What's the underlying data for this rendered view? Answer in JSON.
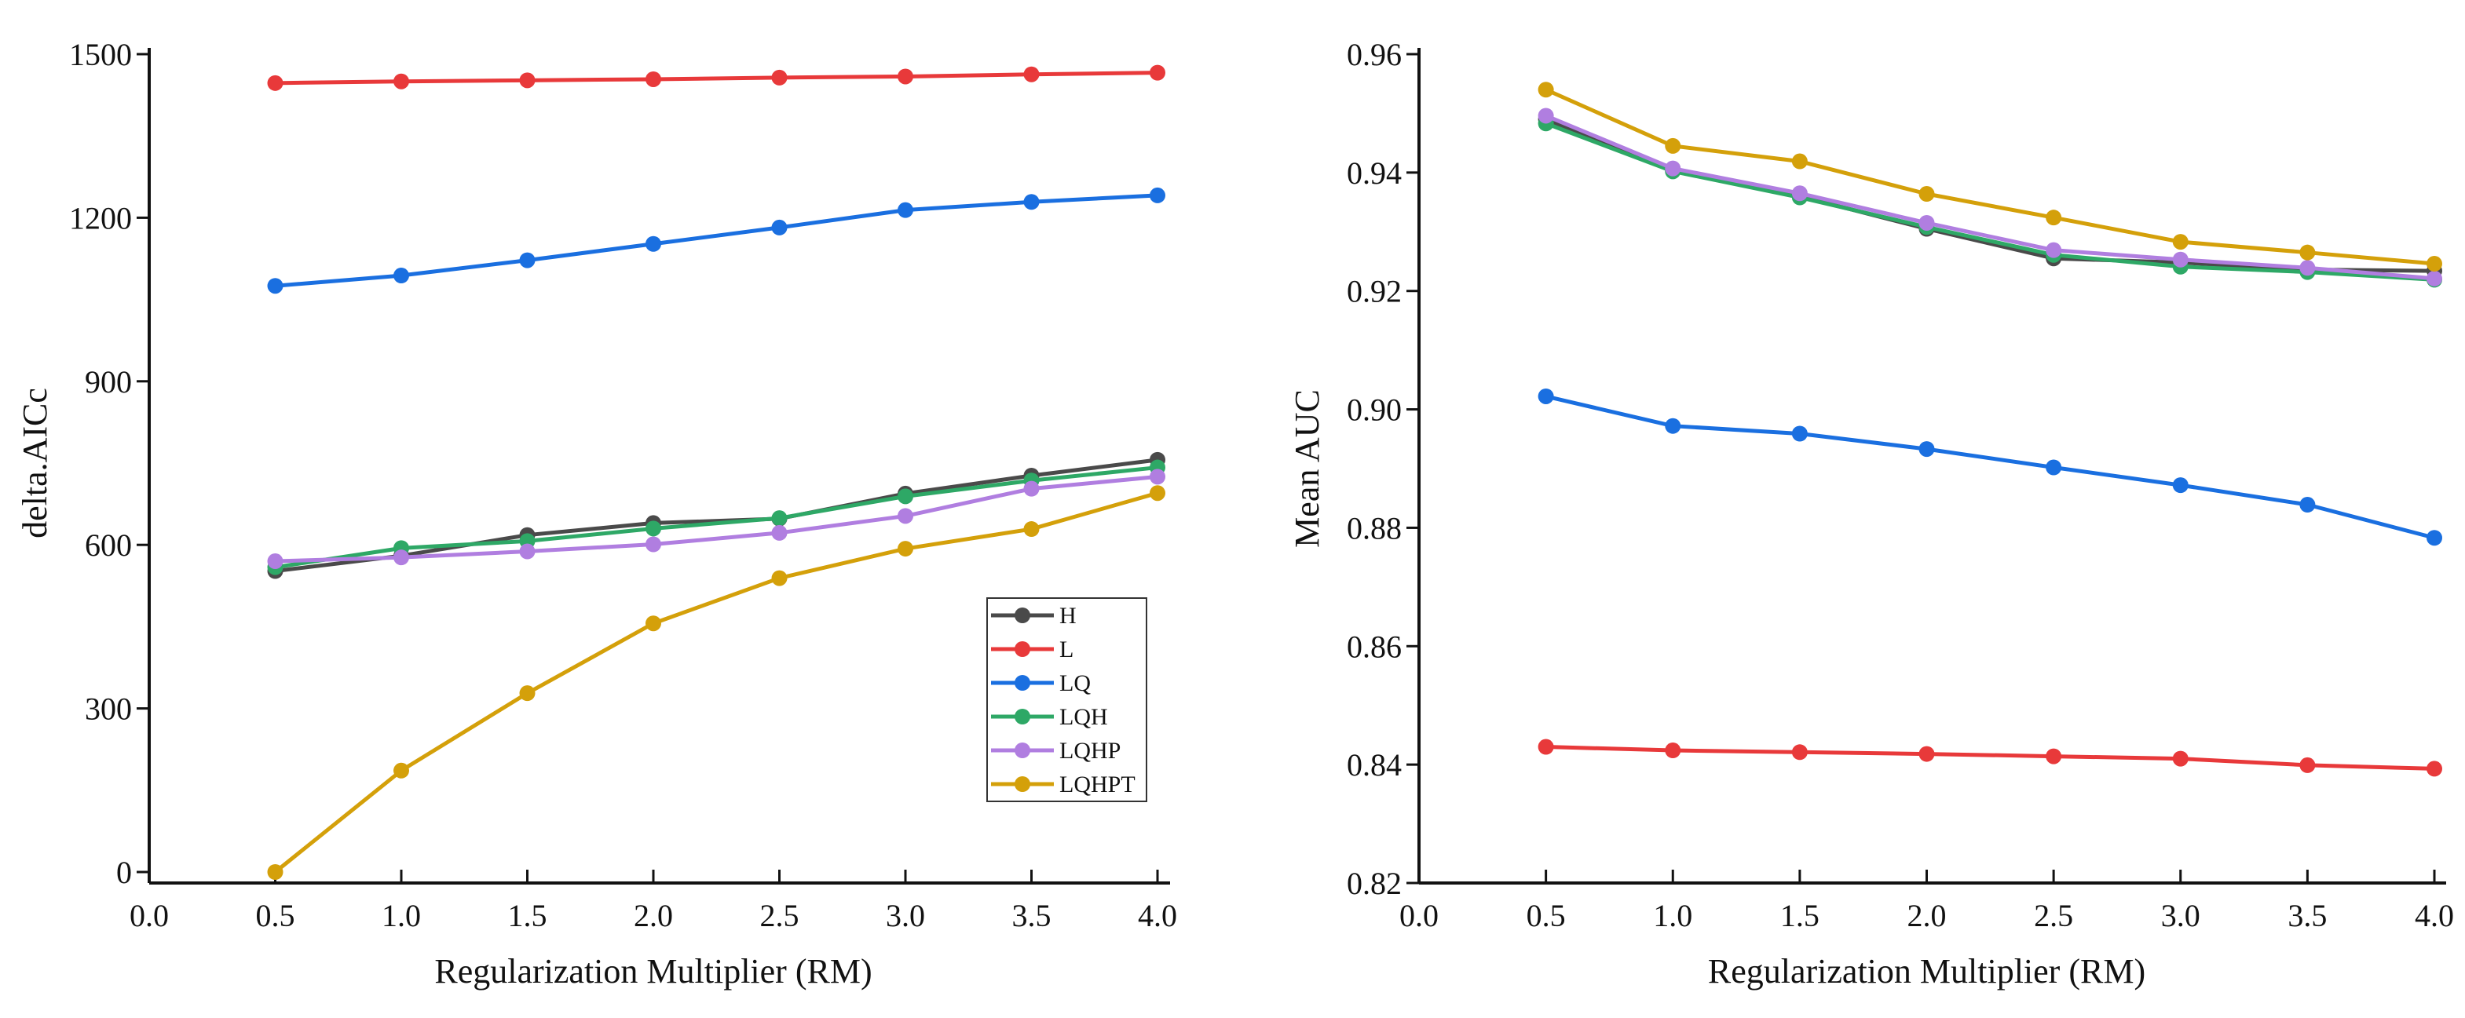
{
  "series_meta": [
    {
      "name": "H",
      "color": "#4a4a4a"
    },
    {
      "name": "L",
      "color": "#e8393a"
    },
    {
      "name": "LQ",
      "color": "#1a6fe0"
    },
    {
      "name": "LQH",
      "color": "#2ea866"
    },
    {
      "name": "LQHP",
      "color": "#b07ee0"
    },
    {
      "name": "LQHPT",
      "color": "#d4a00a"
    }
  ],
  "chart_data": [
    {
      "type": "line",
      "title": "",
      "xlabel": "Regularization Multiplier (RM)",
      "ylabel": "delta.AICc",
      "xlim": [
        0,
        4
      ],
      "ylim": [
        0,
        1500
      ],
      "xticks": [
        "0.0",
        "0.5",
        "1.0",
        "1.5",
        "2.0",
        "2.5",
        "3.0",
        "3.5",
        "4.0"
      ],
      "yticks": [
        "0",
        "300",
        "600",
        "900",
        "1200",
        "1500"
      ],
      "grid": false,
      "legend": "bottom-right",
      "x": [
        0.5,
        1.0,
        1.5,
        2.0,
        2.5,
        3.0,
        3.5,
        4.0
      ],
      "series": [
        {
          "name": "H",
          "values": [
            552,
            580,
            618,
            640,
            648,
            694,
            727,
            756
          ]
        },
        {
          "name": "L",
          "values": [
            1447,
            1450,
            1452,
            1454,
            1457,
            1459,
            1463,
            1466
          ]
        },
        {
          "name": "LQ",
          "values": [
            1075,
            1094,
            1122,
            1152,
            1182,
            1214,
            1229,
            1241
          ]
        },
        {
          "name": "LQH",
          "values": [
            559,
            594,
            607,
            630,
            649,
            689,
            718,
            742
          ]
        },
        {
          "name": "LQHP",
          "values": [
            570,
            577,
            588,
            601,
            622,
            653,
            703,
            725
          ]
        },
        {
          "name": "LQHPT",
          "values": [
            0,
            186,
            328,
            456,
            539,
            593,
            629,
            695
          ]
        }
      ]
    },
    {
      "type": "line",
      "title": "",
      "xlabel": "Regularization Multiplier (RM)",
      "ylabel": "Mean AUC",
      "xlim": [
        0,
        4
      ],
      "ylim": [
        0.82,
        0.96
      ],
      "xticks": [
        "0.0",
        "0.5",
        "1.0",
        "1.5",
        "2.0",
        "2.5",
        "3.0",
        "3.5",
        "4.0"
      ],
      "yticks": [
        "0.82",
        "0.84",
        "0.86",
        "0.88",
        "0.90",
        "0.92",
        "0.94",
        "0.96"
      ],
      "grid": false,
      "legend": "none",
      "x": [
        0.5,
        1.0,
        1.5,
        2.0,
        2.5,
        3.0,
        3.5,
        4.0
      ],
      "series": [
        {
          "name": "H",
          "values": [
            0.949,
            0.9404,
            0.936,
            0.9305,
            0.9255,
            0.9248,
            0.9236,
            0.9234
          ]
        },
        {
          "name": "L",
          "values": [
            0.843,
            0.8424,
            0.8421,
            0.8418,
            0.8414,
            0.841,
            0.8399,
            0.8393
          ]
        },
        {
          "name": "LQ",
          "values": [
            0.9022,
            0.8972,
            0.8959,
            0.8933,
            0.8902,
            0.8872,
            0.8839,
            0.8783
          ]
        },
        {
          "name": "LQH",
          "values": [
            0.9483,
            0.9402,
            0.9358,
            0.9308,
            0.9261,
            0.9241,
            0.9232,
            0.9219
          ]
        },
        {
          "name": "LQHP",
          "values": [
            0.9496,
            0.9407,
            0.9365,
            0.9315,
            0.9269,
            0.9253,
            0.9239,
            0.9221
          ]
        },
        {
          "name": "LQHPT",
          "values": [
            0.954,
            0.9445,
            0.9419,
            0.9364,
            0.9324,
            0.9283,
            0.9265,
            0.9246
          ]
        }
      ]
    }
  ]
}
